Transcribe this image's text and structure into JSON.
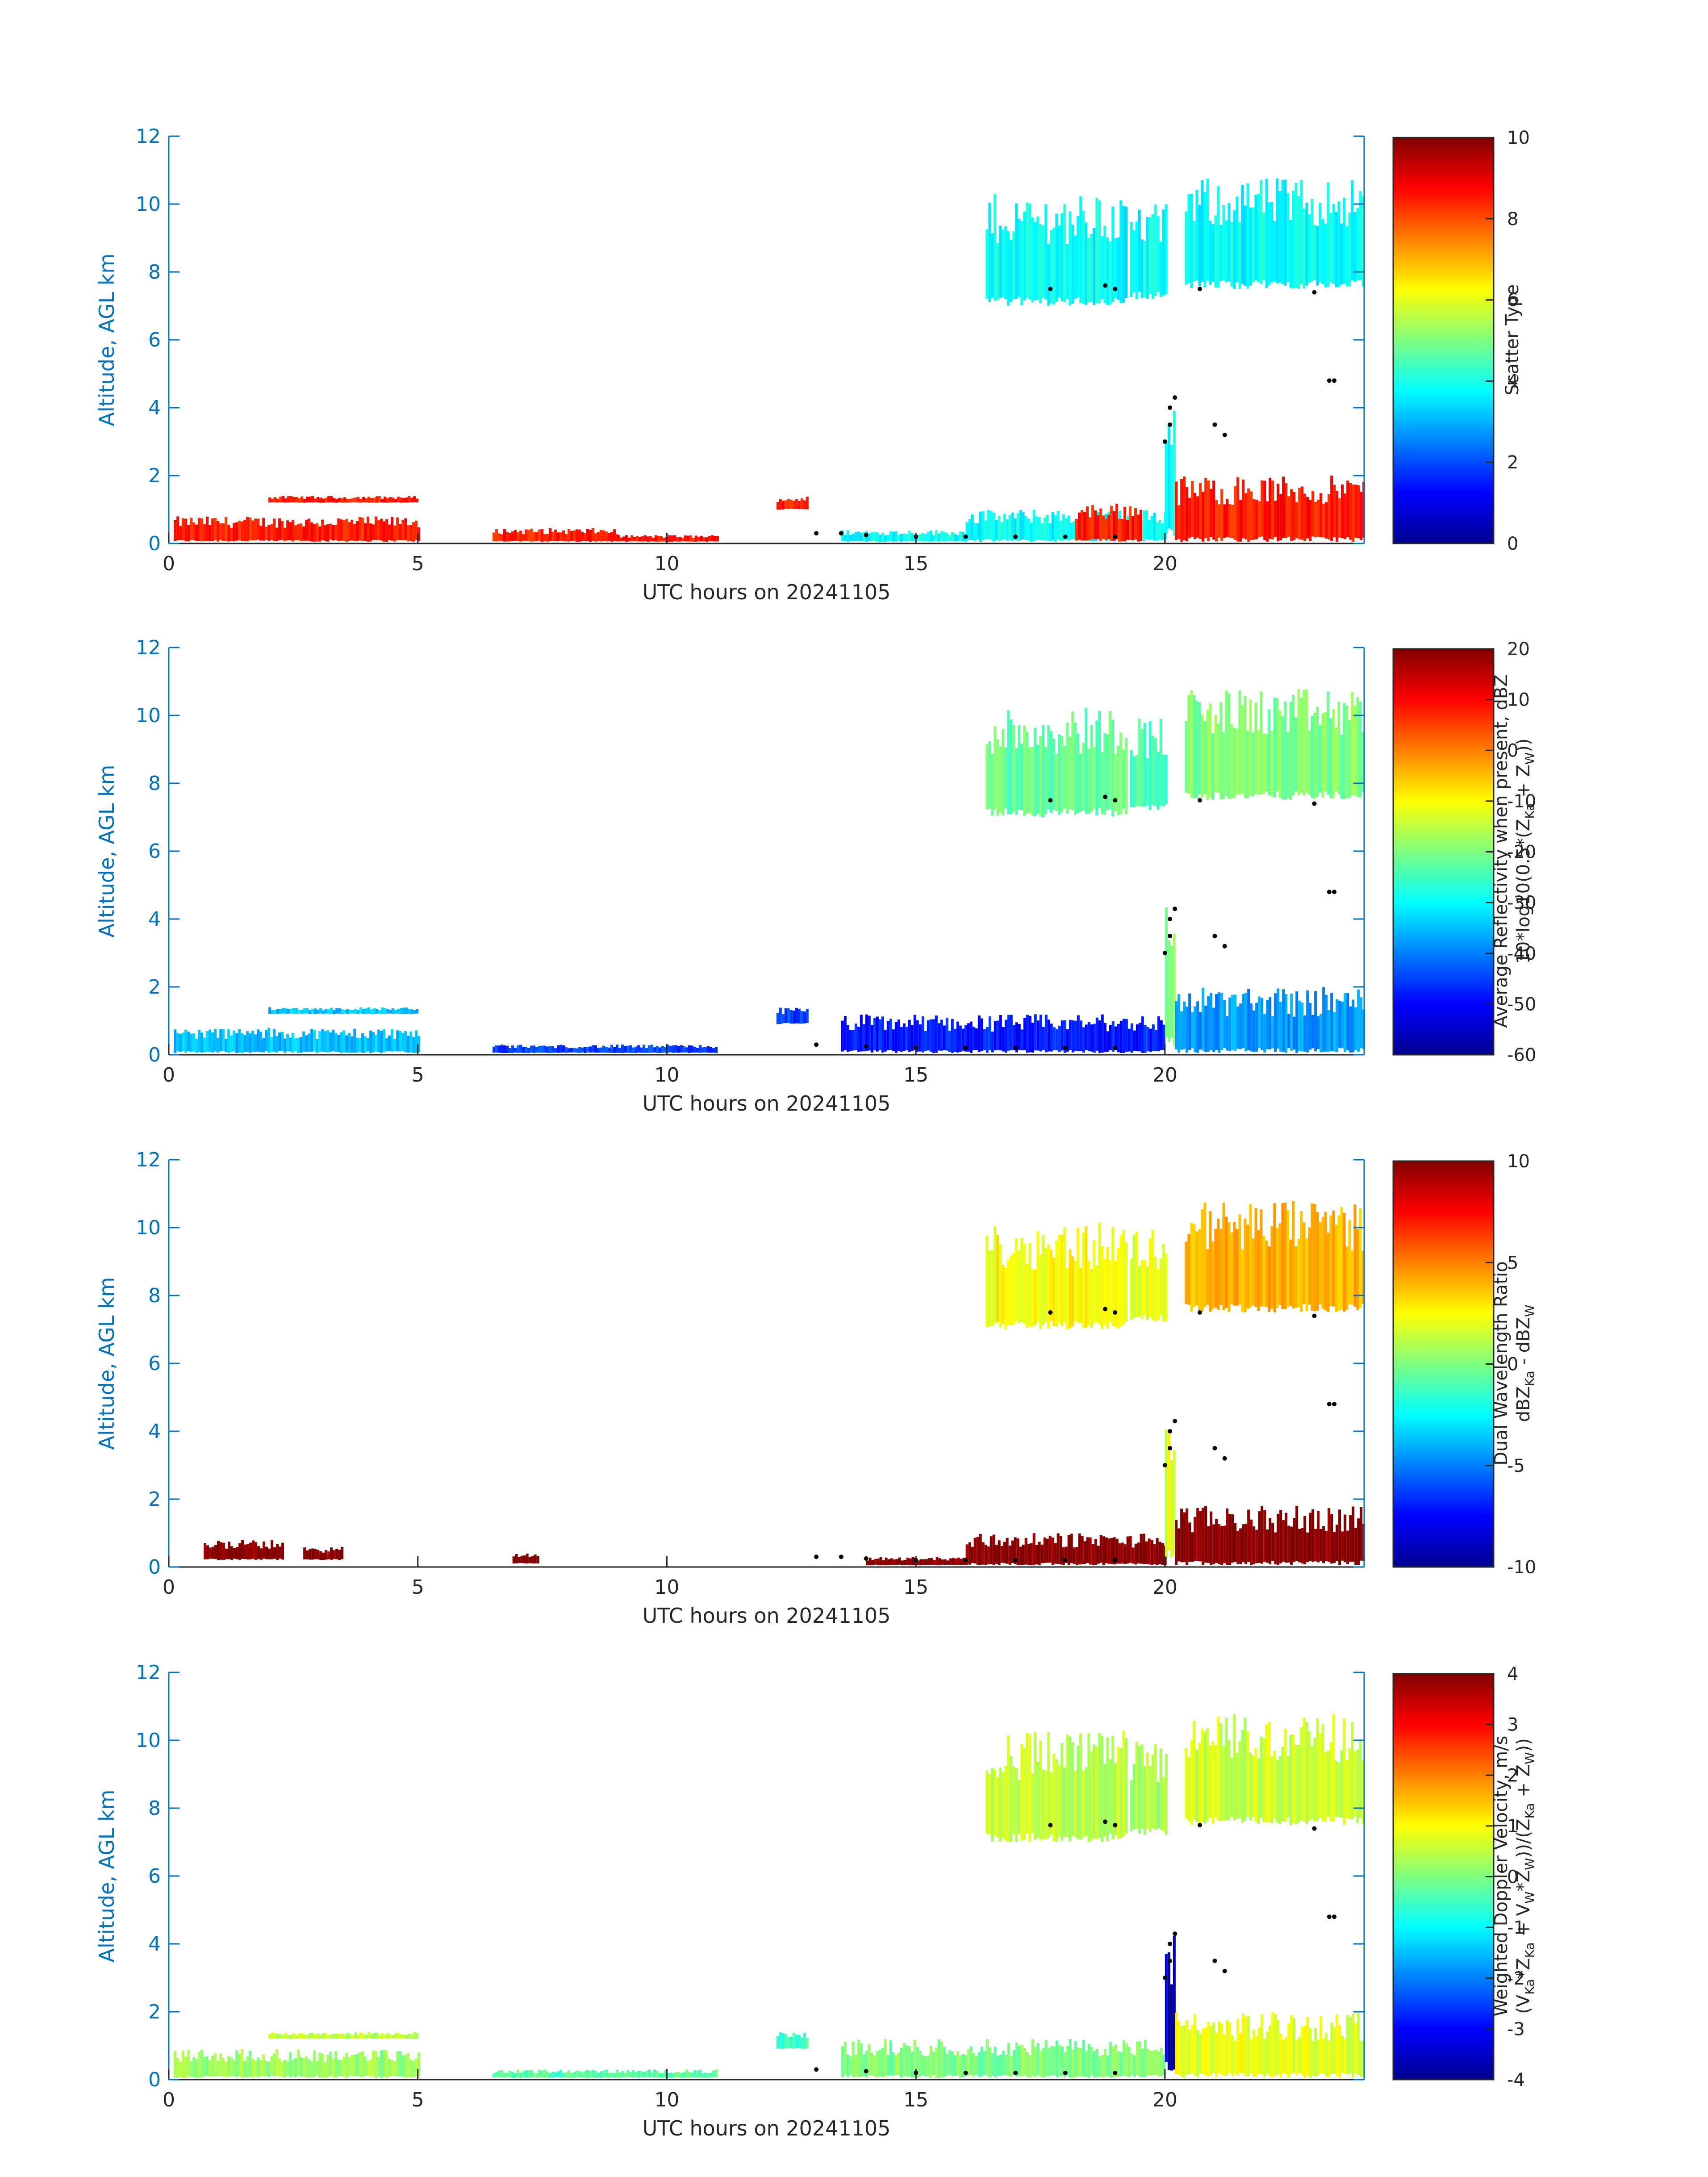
{
  "figure": {
    "date": "20241105",
    "colors": {
      "axis": "#0072bd",
      "text": "#262626",
      "hydrometeor_marker": "#000000"
    }
  },
  "chart_data": [
    {
      "type": "heatmap",
      "id": "scatter-type",
      "xlabel": "UTC hours on 20241105",
      "ylabel": "Altitude, AGL km",
      "xlim": [
        0,
        24
      ],
      "ylim": [
        0,
        12
      ],
      "xticks": [
        "0",
        "5",
        "10",
        "15",
        "20"
      ],
      "yticks": [
        "0",
        "2",
        "4",
        "6",
        "8",
        "10",
        "12"
      ],
      "colorbar": {
        "label_lines": [
          "Scatter Type"
        ],
        "clim": [
          0,
          10
        ],
        "ticks": [
          "0",
          "2",
          "4",
          "6",
          "8",
          "10"
        ],
        "colormap": "jet"
      },
      "regions": [
        {
          "x0": 0.1,
          "x1": 5.0,
          "ymin": 0.05,
          "ymax": 0.8,
          "value": 8.5
        },
        {
          "x0": 2.0,
          "x1": 5.0,
          "ymin": 1.2,
          "ymax": 1.4,
          "value": 8.5
        },
        {
          "x0": 6.5,
          "x1": 9.0,
          "ymin": 0.05,
          "ymax": 0.45,
          "value": 8.5
        },
        {
          "x0": 9.0,
          "x1": 11.0,
          "ymin": 0.05,
          "ymax": 0.25,
          "value": 8.5
        },
        {
          "x0": 12.2,
          "x1": 12.8,
          "ymin": 1.0,
          "ymax": 1.4,
          "value": 8.5
        },
        {
          "x0": 13.5,
          "x1": 16.0,
          "ymin": 0.05,
          "ymax": 0.4,
          "value": 3.8
        },
        {
          "x0": 16.0,
          "x1": 20.0,
          "ymin": 0.05,
          "ymax": 1.0,
          "value": 3.8
        },
        {
          "x0": 18.2,
          "x1": 19.5,
          "ymin": 0.05,
          "ymax": 1.2,
          "value": 8.5
        },
        {
          "x0": 20.0,
          "x1": 20.2,
          "ymin": 0.2,
          "ymax": 4.6,
          "value": 3.8
        },
        {
          "x0": 20.2,
          "x1": 24.0,
          "ymin": 0.05,
          "ymax": 2.0,
          "value": 8.5
        },
        {
          "x0": 16.4,
          "x1": 19.2,
          "ymin": 7.0,
          "ymax": 10.3,
          "value": 3.8
        },
        {
          "x0": 19.3,
          "x1": 20.0,
          "ymin": 7.2,
          "ymax": 10.0,
          "value": 3.8
        },
        {
          "x0": 20.4,
          "x1": 24.0,
          "ymin": 7.5,
          "ymax": 10.8,
          "value": 3.8
        }
      ],
      "markers": [
        [
          13.0,
          0.3
        ],
        [
          13.5,
          0.3
        ],
        [
          14.0,
          0.25
        ],
        [
          15.0,
          0.2
        ],
        [
          16.0,
          0.2
        ],
        [
          17.0,
          0.2
        ],
        [
          18.0,
          0.2
        ],
        [
          19.0,
          0.2
        ],
        [
          17.7,
          7.5
        ],
        [
          18.8,
          7.6
        ],
        [
          19.0,
          7.5
        ],
        [
          20.0,
          3.0
        ],
        [
          20.1,
          3.5
        ],
        [
          20.1,
          4.0
        ],
        [
          20.2,
          4.3
        ],
        [
          21.0,
          3.5
        ],
        [
          21.2,
          3.2
        ],
        [
          20.7,
          7.5
        ],
        [
          23.0,
          7.4
        ],
        [
          23.3,
          4.8
        ],
        [
          23.4,
          4.8
        ]
      ]
    },
    {
      "type": "heatmap",
      "id": "reflectivity",
      "xlabel": "UTC hours on 20241105",
      "ylabel": "Altitude, AGL km",
      "xlim": [
        0,
        24
      ],
      "ylim": [
        0,
        12
      ],
      "xticks": [
        "0",
        "5",
        "10",
        "15",
        "20"
      ],
      "yticks": [
        "0",
        "2",
        "4",
        "6",
        "8",
        "10",
        "12"
      ],
      "colorbar": {
        "label_lines": [
          "Average Reflectivity when present, dBZ",
          "10*log10(0.5*(Z_Ka + Z_W))"
        ],
        "clim": [
          -60,
          20
        ],
        "ticks": [
          "-60",
          "-50",
          "-40",
          "-30",
          "-20",
          "-10",
          "0",
          "10",
          "20"
        ],
        "colormap": "jet"
      },
      "regions": [
        {
          "x0": 0.1,
          "x1": 5.0,
          "ymin": 0.05,
          "ymax": 0.8,
          "value": -35
        },
        {
          "x0": 2.0,
          "x1": 5.0,
          "ymin": 1.2,
          "ymax": 1.4,
          "value": -35
        },
        {
          "x0": 6.5,
          "x1": 11.0,
          "ymin": 0.05,
          "ymax": 0.3,
          "value": -45
        },
        {
          "x0": 12.2,
          "x1": 12.8,
          "ymin": 0.9,
          "ymax": 1.4,
          "value": -45
        },
        {
          "x0": 13.5,
          "x1": 20.0,
          "ymin": 0.05,
          "ymax": 1.2,
          "value": -48
        },
        {
          "x0": 20.0,
          "x1": 20.2,
          "ymin": 0.2,
          "ymax": 4.6,
          "value": -20
        },
        {
          "x0": 20.2,
          "x1": 24.0,
          "ymin": 0.05,
          "ymax": 2.0,
          "value": -38
        },
        {
          "x0": 16.4,
          "x1": 19.2,
          "ymin": 7.0,
          "ymax": 10.3,
          "value": -22
        },
        {
          "x0": 19.3,
          "x1": 20.0,
          "ymin": 7.2,
          "ymax": 10.0,
          "value": -25
        },
        {
          "x0": 20.4,
          "x1": 24.0,
          "ymin": 7.5,
          "ymax": 10.8,
          "value": -20
        }
      ],
      "markers": [
        [
          13.0,
          0.3
        ],
        [
          14.0,
          0.25
        ],
        [
          15.0,
          0.2
        ],
        [
          16.0,
          0.2
        ],
        [
          17.0,
          0.2
        ],
        [
          18.0,
          0.2
        ],
        [
          19.0,
          0.2
        ],
        [
          17.7,
          7.5
        ],
        [
          18.8,
          7.6
        ],
        [
          19.0,
          7.5
        ],
        [
          20.0,
          3.0
        ],
        [
          20.1,
          3.5
        ],
        [
          20.1,
          4.0
        ],
        [
          20.2,
          4.3
        ],
        [
          21.0,
          3.5
        ],
        [
          21.2,
          3.2
        ],
        [
          20.7,
          7.5
        ],
        [
          23.0,
          7.4
        ],
        [
          23.3,
          4.8
        ],
        [
          23.4,
          4.8
        ]
      ]
    },
    {
      "type": "heatmap",
      "id": "dual-wavelength-ratio",
      "xlabel": "UTC hours on 20241105",
      "ylabel": "Altitude, AGL km",
      "xlim": [
        0,
        24
      ],
      "ylim": [
        0,
        12
      ],
      "xticks": [
        "0",
        "5",
        "10",
        "15",
        "20"
      ],
      "yticks": [
        "0",
        "2",
        "4",
        "6",
        "8",
        "10",
        "12"
      ],
      "colorbar": {
        "label_lines": [
          "Dual Wavelength Ratio",
          "dBZ_Ka - dBZ_W"
        ],
        "clim": [
          -10,
          10
        ],
        "ticks": [
          "-10",
          "-5",
          "0",
          "5",
          "10"
        ],
        "colormap": "jet"
      },
      "regions": [
        {
          "x0": 0.7,
          "x1": 2.3,
          "ymin": 0.2,
          "ymax": 0.8,
          "value": 10
        },
        {
          "x0": 2.7,
          "x1": 3.5,
          "ymin": 0.2,
          "ymax": 0.6,
          "value": 10
        },
        {
          "x0": 6.9,
          "x1": 7.4,
          "ymin": 0.1,
          "ymax": 0.4,
          "value": 10
        },
        {
          "x0": 14.0,
          "x1": 16.0,
          "ymin": 0.05,
          "ymax": 0.3,
          "value": 10
        },
        {
          "x0": 16.0,
          "x1": 20.0,
          "ymin": 0.05,
          "ymax": 1.0,
          "value": 10
        },
        {
          "x0": 20.0,
          "x1": 20.2,
          "ymin": 0.2,
          "ymax": 4.5,
          "value": 2
        },
        {
          "x0": 20.2,
          "x1": 24.0,
          "ymin": 0.05,
          "ymax": 1.8,
          "value": 10
        },
        {
          "x0": 16.4,
          "x1": 19.2,
          "ymin": 7.0,
          "ymax": 10.2,
          "value": 2.5
        },
        {
          "x0": 19.3,
          "x1": 20.0,
          "ymin": 7.2,
          "ymax": 10.0,
          "value": 2.0
        },
        {
          "x0": 20.4,
          "x1": 24.0,
          "ymin": 7.5,
          "ymax": 10.8,
          "value": 4.0
        }
      ],
      "markers": [
        [
          13.0,
          0.3
        ],
        [
          13.5,
          0.3
        ],
        [
          14.0,
          0.25
        ],
        [
          15.0,
          0.2
        ],
        [
          16.0,
          0.2
        ],
        [
          17.0,
          0.2
        ],
        [
          18.0,
          0.2
        ],
        [
          19.0,
          0.2
        ],
        [
          17.7,
          7.5
        ],
        [
          18.8,
          7.6
        ],
        [
          19.0,
          7.5
        ],
        [
          20.0,
          3.0
        ],
        [
          20.1,
          3.5
        ],
        [
          20.1,
          4.0
        ],
        [
          20.2,
          4.3
        ],
        [
          21.0,
          3.5
        ],
        [
          21.2,
          3.2
        ],
        [
          20.7,
          7.5
        ],
        [
          23.0,
          7.4
        ],
        [
          23.3,
          4.8
        ],
        [
          23.4,
          4.8
        ]
      ]
    },
    {
      "type": "heatmap",
      "id": "doppler-velocity",
      "xlabel": "UTC hours on 20241105",
      "ylabel": "Altitude, AGL km",
      "xlim": [
        0,
        24
      ],
      "ylim": [
        0,
        12
      ],
      "xticks": [
        "0",
        "5",
        "10",
        "15",
        "20"
      ],
      "yticks": [
        "0",
        "2",
        "4",
        "6",
        "8",
        "10",
        "12"
      ],
      "colorbar": {
        "label_lines": [
          "Weighted Doppler Velocity, m/s",
          "(V_Ka*Z_Ka + V_W*Z_W))/(Z_Ka + Z_W))"
        ],
        "clim": [
          -4,
          4
        ],
        "ticks": [
          "-4",
          "-3",
          "-2",
          "-1",
          "0",
          "1",
          "2",
          "3",
          "4"
        ],
        "colormap": "jet"
      },
      "regions": [
        {
          "x0": 0.1,
          "x1": 5.0,
          "ymin": 0.05,
          "ymax": 0.9,
          "value": 0.2
        },
        {
          "x0": 2.0,
          "x1": 5.0,
          "ymin": 1.2,
          "ymax": 1.4,
          "value": 0.5
        },
        {
          "x0": 6.5,
          "x1": 11.0,
          "ymin": 0.05,
          "ymax": 0.3,
          "value": -0.3
        },
        {
          "x0": 12.2,
          "x1": 12.8,
          "ymin": 0.9,
          "ymax": 1.4,
          "value": -0.5
        },
        {
          "x0": 13.5,
          "x1": 20.0,
          "ymin": 0.05,
          "ymax": 1.2,
          "value": 0.0
        },
        {
          "x0": 20.0,
          "x1": 20.2,
          "ymin": 0.2,
          "ymax": 4.6,
          "value": -3.5
        },
        {
          "x0": 20.2,
          "x1": 24.0,
          "ymin": 0.05,
          "ymax": 2.0,
          "value": 0.8
        },
        {
          "x0": 16.4,
          "x1": 19.2,
          "ymin": 7.0,
          "ymax": 10.3,
          "value": 0.5
        },
        {
          "x0": 19.3,
          "x1": 20.0,
          "ymin": 7.2,
          "ymax": 10.0,
          "value": 0.3
        },
        {
          "x0": 20.4,
          "x1": 24.0,
          "ymin": 7.5,
          "ymax": 10.8,
          "value": 0.6
        }
      ],
      "markers": [
        [
          13.0,
          0.3
        ],
        [
          14.0,
          0.25
        ],
        [
          15.0,
          0.2
        ],
        [
          16.0,
          0.2
        ],
        [
          17.0,
          0.2
        ],
        [
          18.0,
          0.2
        ],
        [
          19.0,
          0.2
        ],
        [
          17.7,
          7.5
        ],
        [
          18.8,
          7.6
        ],
        [
          19.0,
          7.5
        ],
        [
          20.0,
          3.0
        ],
        [
          20.1,
          3.5
        ],
        [
          20.1,
          4.0
        ],
        [
          20.2,
          4.3
        ],
        [
          21.0,
          3.5
        ],
        [
          21.2,
          3.2
        ],
        [
          20.7,
          7.5
        ],
        [
          23.0,
          7.4
        ],
        [
          23.3,
          4.8
        ],
        [
          23.4,
          4.8
        ]
      ]
    }
  ]
}
